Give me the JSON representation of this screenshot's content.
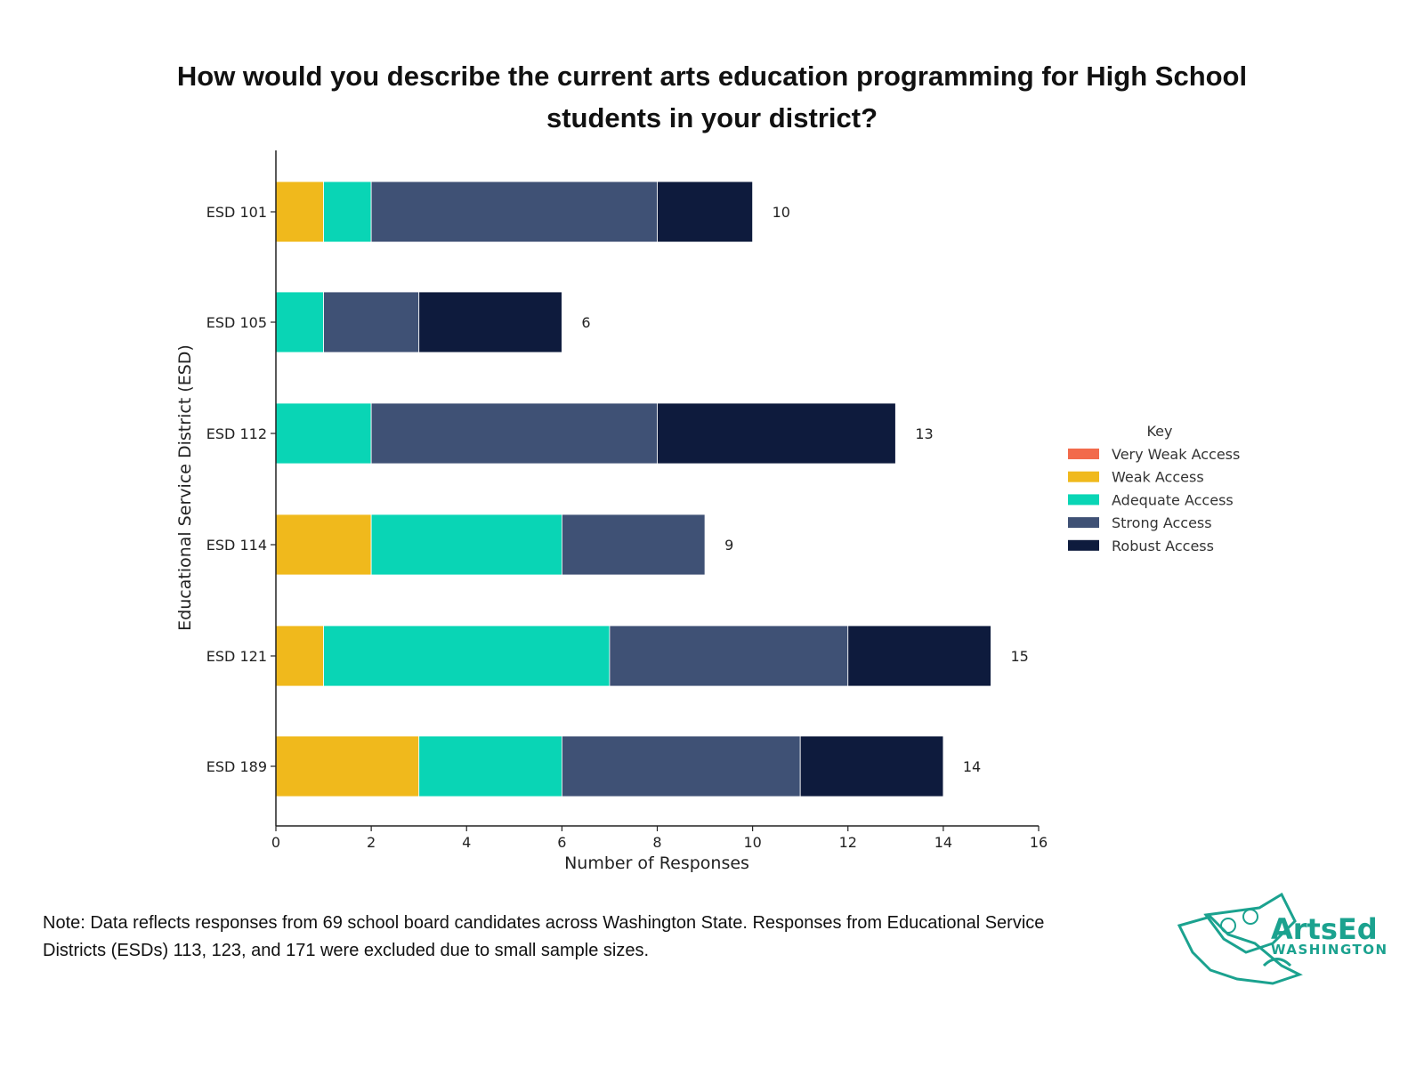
{
  "chart_data": {
    "type": "bar",
    "orientation": "horizontal",
    "stacked": true,
    "title": "How would you describe the current arts education programming for High School students in your district?",
    "xlabel": "Number of Responses",
    "ylabel": "Educational Service District (ESD)",
    "xlim": [
      0,
      16
    ],
    "xticks": [
      0,
      2,
      4,
      6,
      8,
      10,
      12,
      14,
      16
    ],
    "grid": false,
    "categories": [
      "ESD 101",
      "ESD 105",
      "ESD 112",
      "ESD 114",
      "ESD 121",
      "ESD 189"
    ],
    "series": [
      {
        "name": "Very Weak Access",
        "color": "#F26A4B",
        "values": [
          0,
          0,
          0,
          0,
          0,
          0
        ]
      },
      {
        "name": "Weak Access",
        "color": "#F0B91C",
        "values": [
          1,
          0,
          0,
          2,
          1,
          3
        ]
      },
      {
        "name": "Adequate Access",
        "color": "#09D5B5",
        "values": [
          1,
          1,
          2,
          4,
          6,
          3
        ]
      },
      {
        "name": "Strong Access",
        "color": "#3F5175",
        "values": [
          6,
          2,
          6,
          3,
          5,
          5
        ]
      },
      {
        "name": "Robust Access",
        "color": "#0E1B3D",
        "values": [
          2,
          3,
          5,
          0,
          3,
          3
        ]
      }
    ],
    "totals": [
      10,
      6,
      13,
      9,
      15,
      14
    ],
    "legend": {
      "title": "Key",
      "placement": "right"
    }
  },
  "note": "Note: Data reflects responses from 69 school board candidates across Washington State. Responses from Educational Service Districts (ESDs) 113, 123, and 171 were excluded due to small sample sizes.",
  "logo": {
    "line1": "ArtsEd",
    "line2": "WASHINGTON",
    "color": "#1BA28F"
  }
}
